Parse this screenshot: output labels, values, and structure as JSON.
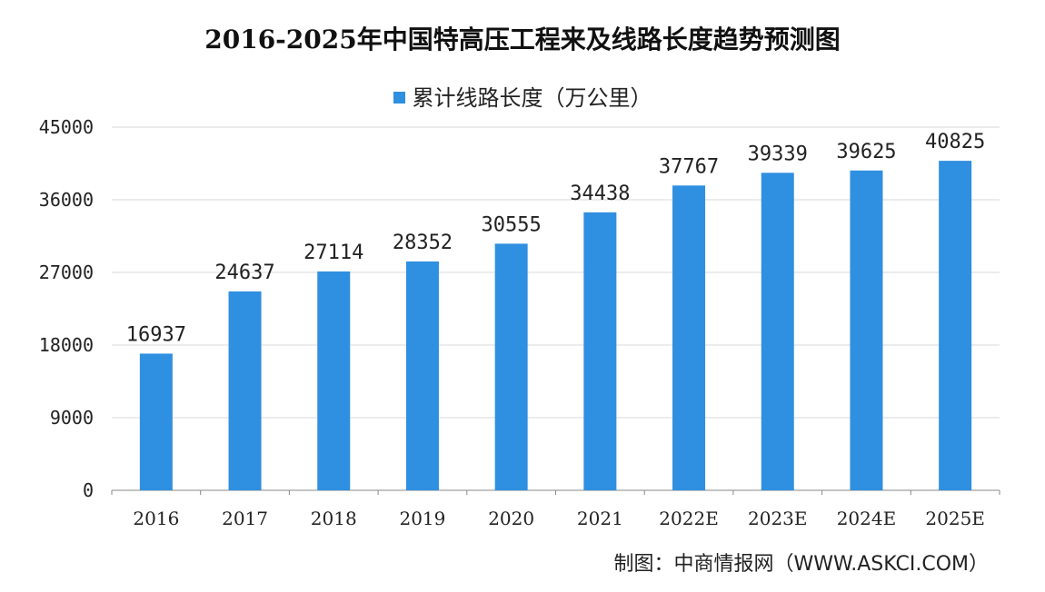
{
  "chart_data": {
    "type": "bar",
    "title": "2016-2025年中国特高压工程来及线路长度趋势预测图",
    "categories": [
      "2016",
      "2017",
      "2018",
      "2019",
      "2020",
      "2021",
      "2022E",
      "2023E",
      "2024E",
      "2025E"
    ],
    "series": [
      {
        "name": "累计线路长度（万公里）",
        "values": [
          16937,
          24637,
          27114,
          28352,
          30555,
          34438,
          37767,
          39339,
          39625,
          40825
        ]
      }
    ],
    "yticks": [
      0,
      9000,
      18000,
      27000,
      36000,
      45000
    ],
    "ylim": [
      0,
      45000
    ],
    "grid": true,
    "legend_position": "top-center",
    "bar_color": "#2f8fe0"
  },
  "source": "制图：中商情报网（WWW.ASKCI.COM）"
}
